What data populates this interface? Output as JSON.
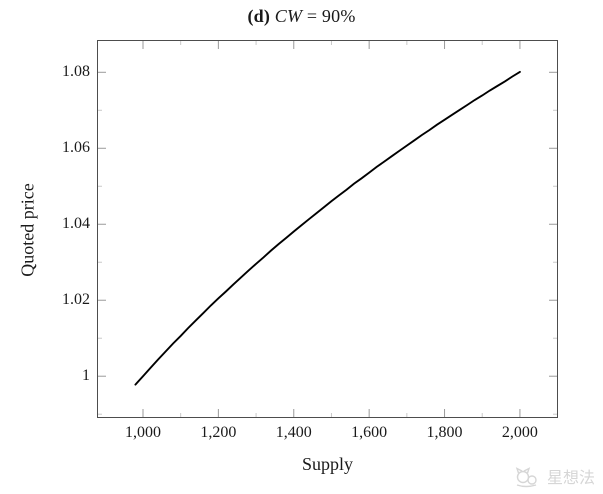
{
  "figure": {
    "title_prefix": "(d)",
    "title_variable": "CW",
    "title_suffix": "= 90%"
  },
  "watermark": {
    "text": "星想法"
  },
  "colors": {
    "background": "#ffffff",
    "axis_border": "#4d4d4d",
    "major_tick": "#9a9a9a",
    "minor_tick": "#c9c9c9",
    "curve": "#000000",
    "text": "#1a1a1a",
    "watermark": "#d6d6d6"
  },
  "chart_data": {
    "type": "line",
    "title": "(d) CW = 90%",
    "xlabel": "Supply",
    "ylabel": "Quoted price",
    "grid": false,
    "legend": null,
    "xlim": [
      878,
      2101
    ],
    "ylim": [
      0.989,
      1.0885
    ],
    "x_major_ticks": [
      1000,
      1200,
      1400,
      1600,
      1800,
      2000
    ],
    "x_tick_labels": [
      "1,000",
      "1,200",
      "1,400",
      "1,600",
      "1,800",
      "2,000"
    ],
    "x_minor_ticks": [
      1100,
      1300,
      1500,
      1700,
      1900
    ],
    "y_major_ticks": [
      1,
      1.02,
      1.04,
      1.06,
      1.08
    ],
    "y_tick_labels": [
      "1",
      "1.02",
      "1.04",
      "1.06",
      "1.08"
    ],
    "y_minor_ticks": [
      0.99,
      1.01,
      1.03,
      1.05,
      1.07
    ],
    "series": [
      {
        "name": "quoted-price-vs-supply",
        "color": "#000000",
        "points": [
          [
            980,
            0.9978
          ],
          [
            1000,
            1.0
          ],
          [
            1020,
            1.0022
          ],
          [
            1040,
            1.0044
          ],
          [
            1060,
            1.0065
          ],
          [
            1080,
            1.0086
          ],
          [
            1100,
            1.0106
          ],
          [
            1120,
            1.0127
          ],
          [
            1140,
            1.0147
          ],
          [
            1160,
            1.0166
          ],
          [
            1180,
            1.0186
          ],
          [
            1200,
            1.0205
          ],
          [
            1220,
            1.0223
          ],
          [
            1240,
            1.0242
          ],
          [
            1260,
            1.026
          ],
          [
            1280,
            1.0278
          ],
          [
            1300,
            1.0296
          ],
          [
            1320,
            1.0313
          ],
          [
            1340,
            1.0331
          ],
          [
            1360,
            1.0348
          ],
          [
            1380,
            1.0364
          ],
          [
            1400,
            1.0381
          ],
          [
            1420,
            1.0397
          ],
          [
            1440,
            1.0413
          ],
          [
            1460,
            1.0429
          ],
          [
            1480,
            1.0445
          ],
          [
            1500,
            1.0461
          ],
          [
            1520,
            1.0476
          ],
          [
            1540,
            1.0491
          ],
          [
            1560,
            1.0507
          ],
          [
            1580,
            1.0521
          ],
          [
            1600,
            1.0536
          ],
          [
            1620,
            1.0551
          ],
          [
            1640,
            1.0565
          ],
          [
            1660,
            1.0579
          ],
          [
            1680,
            1.0593
          ],
          [
            1700,
            1.0607
          ],
          [
            1720,
            1.0621
          ],
          [
            1740,
            1.0635
          ],
          [
            1760,
            1.0648
          ],
          [
            1780,
            1.0662
          ],
          [
            1800,
            1.0675
          ],
          [
            1820,
            1.0688
          ],
          [
            1840,
            1.0701
          ],
          [
            1860,
            1.0714
          ],
          [
            1880,
            1.0727
          ],
          [
            1900,
            1.0739
          ],
          [
            1920,
            1.0752
          ],
          [
            1940,
            1.0764
          ],
          [
            1960,
            1.0776
          ],
          [
            1980,
            1.0789
          ],
          [
            2000,
            1.0801
          ]
        ]
      }
    ]
  }
}
